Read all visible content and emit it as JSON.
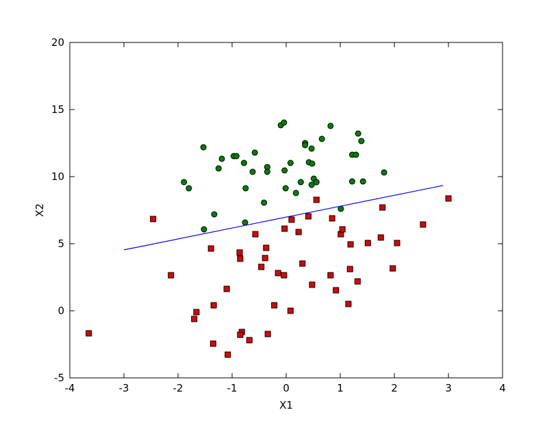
{
  "chart_data": {
    "type": "scatter",
    "xlabel": "X1",
    "ylabel": "X2",
    "xlim": [
      -4,
      4
    ],
    "xticks": [
      -4,
      -3,
      -2,
      -1,
      0,
      1,
      2,
      3,
      4
    ],
    "ylim": [
      -5,
      20
    ],
    "yticks": [
      -5,
      0,
      5,
      10,
      15,
      20
    ],
    "grid": false,
    "series": [
      {
        "marker": "circle",
        "color": "#008000",
        "x": [
          -1.53,
          -1.89,
          -1.8,
          -1.19,
          -1.25,
          -0.97,
          -0.92,
          -0.58,
          -0.78,
          -0.62,
          -0.75,
          -0.35,
          -0.35,
          -0.41,
          -0.76,
          -1.52,
          -1.33,
          -0.1,
          -0.04,
          0.08,
          -0.03,
          -0.01,
          0.18,
          0.27,
          0.35,
          0.35,
          0.42,
          0.47,
          0.48,
          0.47,
          0.51,
          0.56,
          0.66,
          0.82,
          1.01,
          1.33,
          1.39,
          1.22,
          1.29,
          1.22,
          1.42,
          1.81
        ],
        "values": [
          12.19,
          9.59,
          9.13,
          11.33,
          10.61,
          11.53,
          11.53,
          11.79,
          11.02,
          10.36,
          9.13,
          10.71,
          10.36,
          8.06,
          6.58,
          6.07,
          7.19,
          13.83,
          14.03,
          11.02,
          10.46,
          9.13,
          8.78,
          9.59,
          12.5,
          12.35,
          11.07,
          12.09,
          10.97,
          9.39,
          9.85,
          9.59,
          12.81,
          13.78,
          7.6,
          13.21,
          12.65,
          11.63,
          11.63,
          9.64,
          9.64,
          10.31
        ]
      },
      {
        "marker": "square",
        "color": "#e00000",
        "x": [
          -3.65,
          -2.46,
          -2.13,
          -1.66,
          -1.7,
          -1.39,
          -1.34,
          -1.35,
          -1.1,
          -1.08,
          -0.86,
          -0.85,
          -0.82,
          -0.85,
          -0.68,
          -0.57,
          -0.46,
          -0.39,
          -0.37,
          -0.34,
          -0.22,
          -0.15,
          -0.04,
          -0.03,
          0.08,
          0.1,
          0.23,
          0.3,
          0.41,
          0.48,
          0.56,
          0.82,
          0.85,
          0.92,
          1.01,
          1.04,
          1.19,
          1.18,
          1.15,
          1.32,
          1.51,
          1.75,
          1.78,
          1.97,
          2.05,
          2.53,
          3.0
        ],
        "values": [
          -1.68,
          6.84,
          2.65,
          -0.1,
          -0.61,
          4.64,
          0.41,
          -2.45,
          1.63,
          -3.27,
          4.34,
          3.88,
          -1.58,
          -1.79,
          -2.19,
          5.71,
          3.27,
          3.93,
          4.69,
          -1.73,
          0.41,
          2.81,
          2.65,
          6.12,
          0.0,
          6.79,
          5.87,
          3.52,
          7.04,
          1.94,
          8.27,
          2.65,
          6.89,
          1.53,
          5.71,
          6.07,
          4.95,
          3.11,
          0.51,
          2.19,
          5.05,
          5.46,
          7.7,
          3.16,
          5.05,
          6.43,
          8.37
        ]
      },
      {
        "marker": "line",
        "color": "#0000ff",
        "x": [
          -3,
          2.9
        ],
        "values": [
          4.54,
          9.34
        ]
      }
    ]
  }
}
